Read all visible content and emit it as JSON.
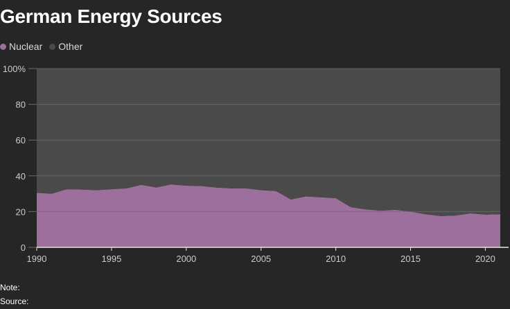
{
  "title": "German Energy Sources",
  "legend": [
    {
      "label": "Nuclear",
      "color": "#9c6f9c"
    },
    {
      "label": "Other",
      "color": "#4a4a4a"
    }
  ],
  "colors": {
    "background": "#262626",
    "plot_background": "#4a4a4a",
    "nuclear": "#9c6f9c",
    "gridline": "#6a6a6a",
    "baseline": "#e6e6e6"
  },
  "footer": {
    "note_label": "Note:",
    "source_label": "Source:"
  },
  "chart_data": {
    "type": "area",
    "stacked": true,
    "percent": true,
    "x": [
      1990,
      1991,
      1992,
      1993,
      1994,
      1995,
      1996,
      1997,
      1998,
      1999,
      2000,
      2001,
      2002,
      2003,
      2004,
      2005,
      2006,
      2007,
      2008,
      2009,
      2010,
      2011,
      2012,
      2013,
      2014,
      2015,
      2016,
      2017,
      2018,
      2019,
      2020,
      2021
    ],
    "series": [
      {
        "name": "Nuclear",
        "values": [
          30.5,
          30.0,
          32.5,
          32.3,
          32.0,
          32.5,
          33.0,
          35.0,
          33.5,
          35.2,
          34.5,
          34.3,
          33.5,
          33.0,
          33.0,
          32.0,
          31.5,
          26.8,
          28.5,
          28.0,
          27.5,
          22.5,
          21.2,
          20.5,
          21.0,
          20.0,
          18.5,
          17.5,
          17.8,
          19.0,
          18.3,
          18.5
        ]
      },
      {
        "name": "Other",
        "values": [
          69.5,
          70.0,
          67.5,
          67.7,
          68.0,
          67.5,
          67.0,
          65.0,
          66.5,
          64.8,
          65.5,
          65.7,
          66.5,
          67.0,
          67.0,
          68.0,
          68.5,
          73.2,
          71.5,
          72.0,
          72.5,
          77.5,
          78.8,
          79.5,
          79.0,
          80.0,
          81.5,
          82.5,
          82.2,
          81.0,
          81.7,
          81.5
        ]
      }
    ],
    "x_ticks": [
      1990,
      1995,
      2000,
      2005,
      2010,
      2015,
      2020
    ],
    "y_ticks": [
      0,
      20,
      40,
      60,
      80,
      100
    ],
    "y_tick_labels": [
      "0",
      "20",
      "40",
      "60",
      "80",
      "100%"
    ],
    "xlim": [
      1990,
      2021
    ],
    "ylim": [
      0,
      100
    ],
    "grid": true,
    "legend_position": "top-left"
  }
}
